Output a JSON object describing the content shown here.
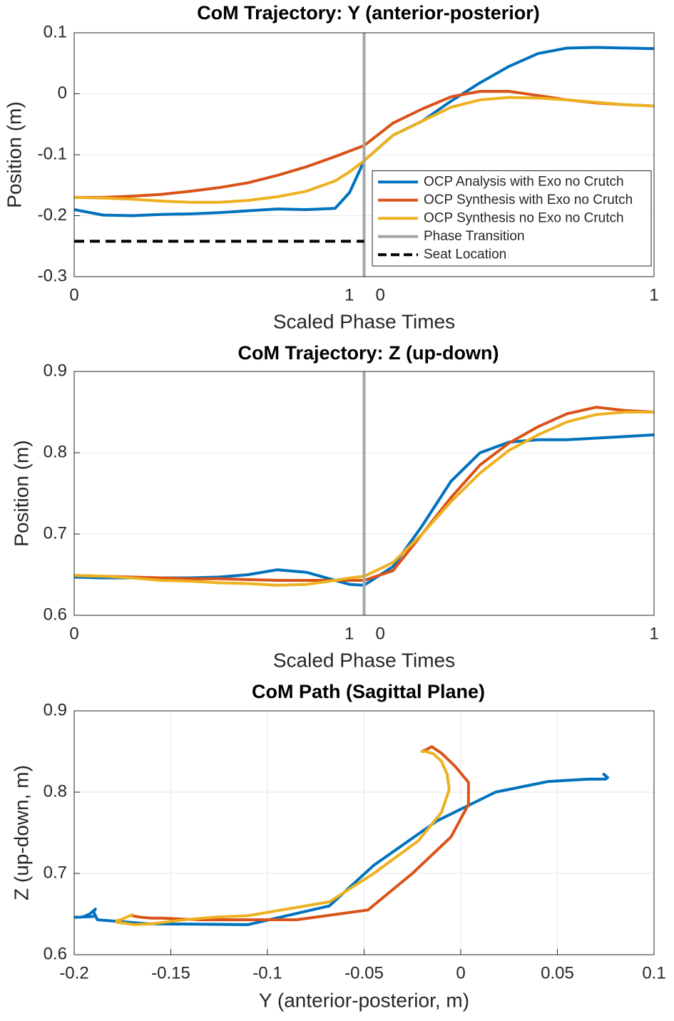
{
  "chart_data": [
    {
      "type": "line",
      "title": "CoM Trajectory: Y (anterior-posterior)",
      "x_label": "Scaled Phase Times",
      "y_label": "Position (m)",
      "xlim": [
        0,
        2
      ],
      "xticks": [
        0,
        1,
        {
          "value": 1,
          "label": "0"
        },
        {
          "value": 2,
          "label": "1"
        }
      ],
      "ylim": [
        -0.3,
        0.1
      ],
      "yticks": [
        -0.3,
        -0.2,
        -0.1,
        0,
        0.1
      ],
      "grid": true,
      "legend": "southeast",
      "series": [
        {
          "name": "OCP Analysis with Exo no Crutch",
          "color": "#0072bd",
          "x": [
            0,
            0.1,
            0.2,
            0.3,
            0.4,
            0.5,
            0.6,
            0.7,
            0.8,
            0.9,
            0.95,
            1,
            1.1,
            1.2,
            1.3,
            1.4,
            1.5,
            1.6,
            1.7,
            1.8,
            1.9,
            2
          ],
          "values": [
            -0.19,
            -0.199,
            -0.2,
            -0.198,
            -0.197,
            -0.195,
            -0.192,
            -0.189,
            -0.19,
            -0.188,
            -0.162,
            -0.11,
            -0.068,
            -0.045,
            -0.012,
            0.018,
            0.045,
            0.066,
            0.075,
            0.076,
            0.075,
            0.074
          ]
        },
        {
          "name": "OCP Synthesis with Exo no Crutch",
          "color": "#d95319",
          "x": [
            0,
            0.1,
            0.2,
            0.3,
            0.4,
            0.5,
            0.6,
            0.7,
            0.8,
            0.9,
            0.95,
            1,
            1.1,
            1.2,
            1.3,
            1.4,
            1.5,
            1.6,
            1.7,
            1.8,
            1.9,
            2
          ],
          "values": [
            -0.17,
            -0.17,
            -0.168,
            -0.165,
            -0.16,
            -0.154,
            -0.146,
            -0.134,
            -0.12,
            -0.103,
            -0.094,
            -0.085,
            -0.048,
            -0.025,
            -0.005,
            0.004,
            0.004,
            -0.003,
            -0.01,
            -0.015,
            -0.018,
            -0.02
          ]
        },
        {
          "name": "OCP Synthesis no Exo no Crutch",
          "color": "#edb120",
          "x": [
            0,
            0.1,
            0.2,
            0.3,
            0.4,
            0.5,
            0.6,
            0.7,
            0.8,
            0.9,
            0.95,
            1,
            1.1,
            1.2,
            1.3,
            1.4,
            1.5,
            1.6,
            1.7,
            1.8,
            1.9,
            2
          ],
          "values": [
            -0.17,
            -0.171,
            -0.173,
            -0.176,
            -0.178,
            -0.178,
            -0.175,
            -0.169,
            -0.16,
            -0.143,
            -0.128,
            -0.11,
            -0.068,
            -0.045,
            -0.022,
            -0.01,
            -0.006,
            -0.007,
            -0.01,
            -0.014,
            -0.018,
            -0.02
          ]
        },
        {
          "name": "Phase Transition",
          "color": "#a6a6a6",
          "x": [
            1,
            1
          ],
          "values": [
            -0.3,
            0.1
          ]
        },
        {
          "name": "Seat Location",
          "color": "#000000",
          "dash": "dashed",
          "x": [
            0,
            1
          ],
          "values": [
            -0.242,
            -0.242
          ]
        }
      ]
    },
    {
      "type": "line",
      "title": "CoM Trajectory: Z (up-down)",
      "x_label": "Scaled Phase Times",
      "y_label": "Position (m)",
      "xlim": [
        0,
        2
      ],
      "xticks": [
        0,
        1,
        {
          "value": 1,
          "label": "0"
        },
        {
          "value": 2,
          "label": "1"
        }
      ],
      "ylim": [
        0.6,
        0.9
      ],
      "yticks": [
        0.6,
        0.7,
        0.8,
        0.9
      ],
      "grid": true,
      "series": [
        {
          "color": "#0072bd",
          "x": [
            0,
            0.1,
            0.2,
            0.3,
            0.4,
            0.5,
            0.6,
            0.7,
            0.8,
            0.9,
            0.95,
            1,
            1.1,
            1.2,
            1.3,
            1.4,
            1.5,
            1.6,
            1.7,
            1.8,
            1.9,
            2
          ],
          "values": [
            0.647,
            0.646,
            0.646,
            0.646,
            0.646,
            0.647,
            0.65,
            0.656,
            0.653,
            0.643,
            0.638,
            0.637,
            0.66,
            0.71,
            0.765,
            0.8,
            0.813,
            0.816,
            0.816,
            0.818,
            0.82,
            0.822
          ]
        },
        {
          "color": "#d95319",
          "x": [
            0,
            0.1,
            0.2,
            0.3,
            0.4,
            0.5,
            0.6,
            0.7,
            0.8,
            0.9,
            0.95,
            1,
            1.1,
            1.2,
            1.3,
            1.4,
            1.5,
            1.6,
            1.7,
            1.8,
            1.9,
            2
          ],
          "values": [
            0.649,
            0.648,
            0.647,
            0.646,
            0.645,
            0.645,
            0.644,
            0.643,
            0.643,
            0.643,
            0.643,
            0.643,
            0.655,
            0.7,
            0.745,
            0.785,
            0.812,
            0.832,
            0.848,
            0.856,
            0.852,
            0.85
          ]
        },
        {
          "color": "#edb120",
          "x": [
            0,
            0.1,
            0.2,
            0.3,
            0.4,
            0.5,
            0.6,
            0.7,
            0.8,
            0.9,
            0.95,
            1,
            1.1,
            1.2,
            1.3,
            1.4,
            1.5,
            1.6,
            1.7,
            1.8,
            1.9,
            2
          ],
          "values": [
            0.649,
            0.648,
            0.646,
            0.643,
            0.642,
            0.64,
            0.639,
            0.637,
            0.638,
            0.643,
            0.646,
            0.648,
            0.665,
            0.7,
            0.74,
            0.775,
            0.803,
            0.822,
            0.838,
            0.847,
            0.85,
            0.85
          ]
        },
        {
          "color": "#a6a6a6",
          "x": [
            1,
            1
          ],
          "values": [
            0.6,
            0.9
          ]
        }
      ]
    },
    {
      "type": "line",
      "title": "CoM Path (Sagittal Plane)",
      "x_label": "Y (anterior-posterior, m)",
      "y_label": "Z (up-down, m)",
      "xlim": [
        -0.2,
        0.1
      ],
      "xticks": [
        -0.2,
        -0.15,
        -0.1,
        -0.05,
        0,
        0.05,
        0.1
      ],
      "ylim": [
        0.6,
        0.9
      ],
      "yticks": [
        0.6,
        0.7,
        0.8,
        0.9
      ],
      "grid": true,
      "series": [
        {
          "color": "#0072bd",
          "x": [
            -0.19,
            -0.199,
            -0.2,
            -0.198,
            -0.197,
            -0.195,
            -0.192,
            -0.189,
            -0.19,
            -0.188,
            -0.162,
            -0.11,
            -0.068,
            -0.045,
            -0.012,
            0.018,
            0.045,
            0.066,
            0.075,
            0.076,
            0.075,
            0.074
          ],
          "values": [
            0.647,
            0.646,
            0.646,
            0.646,
            0.646,
            0.647,
            0.65,
            0.656,
            0.653,
            0.643,
            0.638,
            0.637,
            0.66,
            0.71,
            0.765,
            0.8,
            0.813,
            0.816,
            0.816,
            0.818,
            0.82,
            0.822
          ]
        },
        {
          "color": "#d95319",
          "x": [
            -0.17,
            -0.17,
            -0.168,
            -0.165,
            -0.16,
            -0.154,
            -0.146,
            -0.134,
            -0.12,
            -0.103,
            -0.094,
            -0.085,
            -0.048,
            -0.025,
            -0.005,
            0.004,
            0.004,
            -0.003,
            -0.01,
            -0.015,
            -0.018,
            -0.02
          ],
          "values": [
            0.649,
            0.648,
            0.647,
            0.646,
            0.645,
            0.645,
            0.644,
            0.643,
            0.643,
            0.643,
            0.643,
            0.643,
            0.655,
            0.7,
            0.745,
            0.785,
            0.812,
            0.832,
            0.848,
            0.856,
            0.852,
            0.85
          ]
        },
        {
          "color": "#edb120",
          "x": [
            -0.17,
            -0.171,
            -0.173,
            -0.176,
            -0.178,
            -0.178,
            -0.175,
            -0.169,
            -0.16,
            -0.143,
            -0.128,
            -0.11,
            -0.068,
            -0.045,
            -0.022,
            -0.01,
            -0.006,
            -0.007,
            -0.01,
            -0.014,
            -0.018,
            -0.02
          ],
          "values": [
            0.649,
            0.648,
            0.646,
            0.643,
            0.642,
            0.64,
            0.639,
            0.637,
            0.638,
            0.643,
            0.646,
            0.648,
            0.665,
            0.7,
            0.74,
            0.775,
            0.803,
            0.822,
            0.838,
            0.847,
            0.85,
            0.85
          ]
        }
      ]
    }
  ]
}
